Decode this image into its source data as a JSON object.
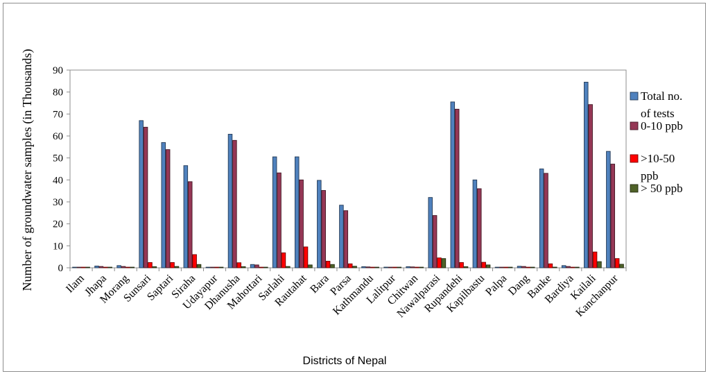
{
  "chart_data": {
    "type": "bar",
    "title": "",
    "xlabel": "Districts of Nepal",
    "ylabel": "Number of groundwater samples (in Thousands)",
    "ylim": [
      0,
      90
    ],
    "yticks": [
      "0",
      "10",
      "20",
      "30",
      "40",
      "50",
      "60",
      "70",
      "80",
      "90"
    ],
    "grid": false,
    "legend_position": "right",
    "categories": [
      "Ilam",
      "Jhapa",
      "Morang",
      "Sunsari",
      "Saptari",
      "Siraha",
      "Udayapur",
      "Dhanusha",
      "Mahottari",
      "Sarlahi",
      "Rautahat",
      "Bara",
      "Parsa",
      "Kathmandu",
      "Lalitpur",
      "Chitwan",
      "Nawalparasi",
      "Rupandehi",
      "Kapilbastu",
      "Palpa",
      "Dang",
      "Banke",
      "Bardiya",
      "Kailali",
      "Kanchanpur"
    ],
    "series": [
      {
        "name": "Total no. of tests",
        "legend_lines": [
          "Total no.",
          "of tests"
        ],
        "color": "#4f81bd",
        "values": [
          0.2,
          0.8,
          1.0,
          67,
          57,
          46.5,
          0.2,
          60.8,
          1.5,
          50.5,
          50.5,
          39.8,
          28.5,
          0.5,
          0.3,
          0.5,
          32,
          75.5,
          40,
          0.2,
          0.7,
          45,
          1.0,
          84.5,
          53
        ]
      },
      {
        "name": "0-10 ppb",
        "legend_lines": [
          "0-10 ppb"
        ],
        "color": "#953755",
        "values": [
          0.1,
          0.6,
          0.6,
          64,
          53.8,
          39.2,
          0.1,
          58,
          1.3,
          43.2,
          40,
          35.2,
          26,
          0.4,
          0.2,
          0.4,
          23.8,
          72.2,
          36,
          0.1,
          0.6,
          43,
          0.6,
          74.3,
          47.2
        ]
      },
      {
        "name": ">10-50 ppb",
        "legend_lines": [
          ">10-50",
          "ppb"
        ],
        "color": "#ff0000",
        "values": [
          0,
          0.1,
          0.2,
          2.4,
          2.4,
          6,
          0,
          2.3,
          0.1,
          6.8,
          9.5,
          3,
          1.8,
          0,
          0,
          0,
          4.5,
          2.4,
          2.5,
          0,
          0.1,
          1.8,
          0.2,
          7.2,
          4.2
        ]
      },
      {
        "name": "> 50 ppb",
        "legend_lines": [
          "> 50 ppb"
        ],
        "color": "#4f6228",
        "values": [
          0,
          0,
          0,
          0.5,
          0.6,
          1.5,
          0,
          0.5,
          0,
          0.6,
          1.3,
          1.5,
          0.7,
          0,
          0,
          0,
          4.2,
          0.5,
          1.3,
          0,
          0,
          0.3,
          0,
          2.8,
          1.6
        ]
      }
    ]
  }
}
